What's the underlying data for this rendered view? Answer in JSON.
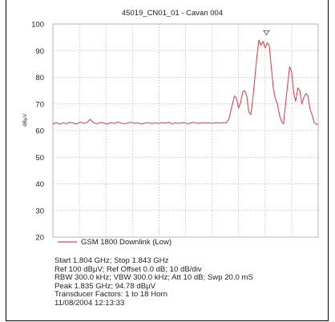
{
  "chart_data": {
    "type": "line",
    "title": "45019_CN01_01 - Cavan 004",
    "xlabel": "",
    "ylabel": "dBµV",
    "ylim": [
      20,
      100
    ],
    "yticks": [
      100,
      90,
      80,
      70,
      60,
      50,
      40,
      30,
      20
    ],
    "xlim": [
      1.804,
      1.843
    ],
    "x_unit": "GHz",
    "grid": true,
    "legend_position": "bottom",
    "color": "#e0464f",
    "series": [
      {
        "name": "GSM 1800 Downlink (Low)",
        "x": [
          1.804,
          1.8045,
          1.805,
          1.8055,
          1.806,
          1.8065,
          1.807,
          1.8075,
          1.808,
          1.8085,
          1.809,
          1.8095,
          1.81,
          1.8105,
          1.811,
          1.8115,
          1.812,
          1.8125,
          1.813,
          1.8135,
          1.814,
          1.8145,
          1.815,
          1.8155,
          1.816,
          1.8165,
          1.817,
          1.8175,
          1.818,
          1.8185,
          1.819,
          1.8195,
          1.82,
          1.8205,
          1.821,
          1.8215,
          1.822,
          1.8225,
          1.823,
          1.8235,
          1.824,
          1.8245,
          1.825,
          1.8255,
          1.826,
          1.8265,
          1.827,
          1.8275,
          1.828,
          1.8285,
          1.829,
          1.8295,
          1.8299,
          1.8303,
          1.8307,
          1.831,
          1.8313,
          1.8316,
          1.8319,
          1.8322,
          1.8325,
          1.8328,
          1.8331,
          1.8334,
          1.8337,
          1.834,
          1.8343,
          1.8346,
          1.8349,
          1.8352,
          1.8355,
          1.8358,
          1.8361,
          1.8364,
          1.8367,
          1.837,
          1.8373,
          1.8376,
          1.8379,
          1.8382,
          1.8385,
          1.8388,
          1.8391,
          1.8394,
          1.8397,
          1.84,
          1.8403,
          1.8406,
          1.8409,
          1.8412,
          1.8415,
          1.8418,
          1.8421,
          1.8424,
          1.8427,
          1.843
        ],
        "y": [
          62.5,
          63.0,
          62.4,
          62.9,
          62.6,
          63.1,
          62.8,
          62.5,
          63.2,
          62.7,
          63.0,
          64.2,
          62.9,
          62.6,
          63.1,
          62.8,
          62.5,
          63.0,
          62.7,
          63.2,
          62.9,
          62.6,
          62.8,
          63.1,
          62.7,
          62.9,
          62.5,
          62.8,
          63.0,
          62.6,
          62.9,
          62.7,
          63.0,
          62.8,
          63.1,
          62.6,
          62.9,
          62.7,
          63.0,
          62.8,
          62.6,
          63.1,
          62.9,
          62.7,
          63.0,
          62.8,
          62.9,
          62.7,
          63.0,
          62.8,
          63.0,
          62.9,
          64.5,
          69.0,
          73.0,
          72.0,
          68.5,
          70.5,
          74.5,
          75.0,
          73.0,
          67.0,
          66.0,
          72.0,
          80.0,
          88.0,
          94.0,
          92.0,
          93.5,
          91.0,
          93.0,
          92.0,
          84.0,
          76.0,
          72.0,
          70.0,
          66.0,
          63.5,
          62.5,
          70.0,
          77.0,
          84.0,
          82.0,
          74.0,
          71.0,
          76.0,
          75.0,
          70.0,
          72.5,
          74.0,
          73.0,
          68.0,
          66.0,
          63.0,
          62.5,
          62.3
        ]
      }
    ],
    "marker": {
      "x": 1.8354,
      "y": 94.78,
      "shape": "triangle-down"
    }
  },
  "info_lines": [
    "Start 1.804 GHz; Stop 1.843 GHz",
    "Ref 100 dBµV; Ref Offset 0.0 dB; 10 dB/div",
    "RBW 300.0 kHz; VBW 300.0 kHz; Att 10 dB; Swp 20.0 mS",
    "Peak 1.835 GHz; 94.78 dBµV",
    "Transducer Factors: 1 to 18 Horn",
    "11/08/2004 12:13:33"
  ]
}
